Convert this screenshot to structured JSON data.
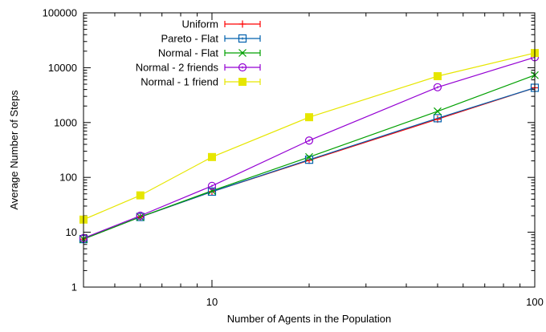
{
  "chart_data": {
    "type": "line",
    "title": "",
    "xlabel": "Number of Agents in the Population",
    "ylabel": "Average Number of Steps",
    "xscale": "log",
    "yscale": "log",
    "xlim": [
      4,
      100
    ],
    "ylim": [
      1,
      100000
    ],
    "xticks": [
      10,
      100
    ],
    "xtick_labels": [
      "10",
      "100"
    ],
    "yticks": [
      1,
      10,
      100,
      1000,
      10000,
      100000
    ],
    "ytick_labels": [
      "1",
      "10",
      "100",
      "1000",
      "10000",
      "100000"
    ],
    "grid": false,
    "legend_position": "top-left",
    "x": [
      4,
      6,
      10,
      20,
      50,
      100
    ],
    "series": [
      {
        "name": "Uniform",
        "color": "#ff0000",
        "marker": "plus",
        "values": [
          7.5,
          19,
          55,
          205,
          1150,
          4300
        ]
      },
      {
        "name": "Pareto - Flat",
        "color": "#0060ad",
        "marker": "square",
        "values": [
          7.5,
          19,
          55,
          210,
          1200,
          4300
        ]
      },
      {
        "name": "Normal - Flat",
        "color": "#00a000",
        "marker": "x",
        "values": [
          7.5,
          19,
          57,
          235,
          1600,
          7300
        ]
      },
      {
        "name": "Normal - 2 friends",
        "color": "#9400d3",
        "marker": "circle",
        "values": [
          7.8,
          20,
          70,
          470,
          4400,
          15500
        ]
      },
      {
        "name": "Normal - 1 friend",
        "color": "#e6e600",
        "marker": "filled-square",
        "values": [
          17,
          47,
          235,
          1250,
          7000,
          18500
        ]
      }
    ]
  }
}
